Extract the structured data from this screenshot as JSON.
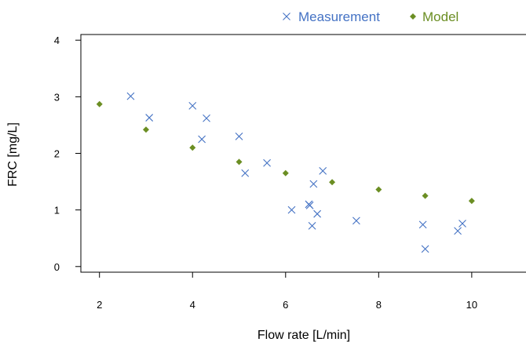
{
  "chart_data": {
    "type": "scatter",
    "title": "",
    "xlabel": "Flow rate [L/min]",
    "ylabel": "FRC [mg/L]",
    "xlim": [
      1.6,
      11.2
    ],
    "ylim": [
      -0.1,
      4.1
    ],
    "x_ticks": [
      2,
      4,
      6,
      8,
      10
    ],
    "y_ticks": [
      0,
      1,
      2,
      3,
      4
    ],
    "grid": false,
    "legend_position": "top-right",
    "series": [
      {
        "name": "Measurement",
        "marker": "x",
        "color": "#4472C4",
        "points": [
          [
            2.67,
            3.01
          ],
          [
            3.07,
            2.63
          ],
          [
            4.0,
            2.84
          ],
          [
            4.2,
            2.25
          ],
          [
            4.3,
            2.62
          ],
          [
            5.0,
            2.3
          ],
          [
            5.13,
            1.65
          ],
          [
            5.6,
            1.83
          ],
          [
            6.13,
            1.0
          ],
          [
            6.5,
            1.1
          ],
          [
            6.52,
            1.08
          ],
          [
            6.57,
            0.72
          ],
          [
            6.6,
            1.46
          ],
          [
            6.68,
            0.93
          ],
          [
            6.8,
            1.69
          ],
          [
            7.52,
            0.81
          ],
          [
            8.95,
            0.74
          ],
          [
            9.0,
            0.31
          ],
          [
            9.7,
            0.63
          ],
          [
            9.8,
            0.76
          ]
        ]
      },
      {
        "name": "Model",
        "marker": "diamond",
        "color": "#6B8E23",
        "points": [
          [
            2,
            2.87
          ],
          [
            3,
            2.42
          ],
          [
            4,
            2.1
          ],
          [
            5,
            1.85
          ],
          [
            6,
            1.65
          ],
          [
            7,
            1.49
          ],
          [
            8,
            1.36
          ],
          [
            9,
            1.25
          ],
          [
            10,
            1.16
          ]
        ]
      }
    ]
  }
}
